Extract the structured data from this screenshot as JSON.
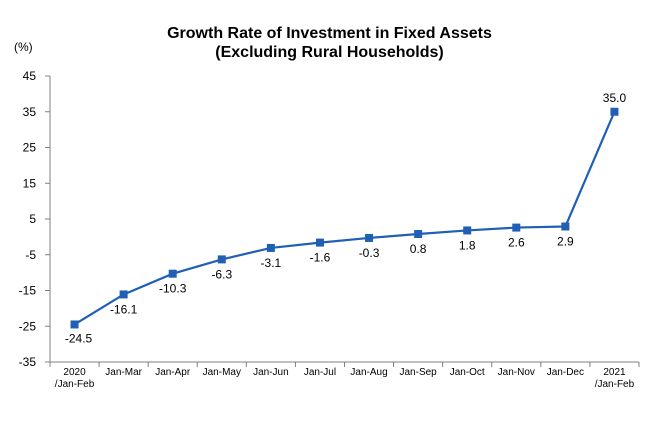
{
  "chart_data": {
    "type": "line",
    "title": "Growth Rate of Investment in Fixed Assets",
    "subtitle": "(Excluding Rural Households)",
    "ylabel": "(%)",
    "xlabel": "",
    "categories": [
      [
        "2020",
        "/Jan-Feb"
      ],
      [
        "Jan-Mar"
      ],
      [
        "Jan-Apr"
      ],
      [
        "Jan-May"
      ],
      [
        "Jan-Jun"
      ],
      [
        "Jan-Jul"
      ],
      [
        "Jan-Aug"
      ],
      [
        "Jan-Sep"
      ],
      [
        "Jan-Oct"
      ],
      [
        "Jan-Nov"
      ],
      [
        "Jan-Dec"
      ],
      [
        "2021",
        "/Jan-Feb"
      ]
    ],
    "values": [
      -24.5,
      -16.1,
      -10.3,
      -6.3,
      -3.1,
      -1.6,
      -0.3,
      0.8,
      1.8,
      2.6,
      2.9,
      35.0
    ],
    "data_labels": [
      "-24.5",
      "-16.1",
      "-10.3",
      "-6.3",
      "-3.1",
      "-1.6",
      "-0.3",
      "0.8",
      "1.8",
      "2.6",
      "2.9",
      "35.0"
    ],
    "ylim": [
      -35,
      45
    ],
    "yticks": [
      "45",
      "35",
      "25",
      "15",
      "5",
      "-5",
      "-15",
      "-25",
      "-35"
    ],
    "ytick_values": [
      45,
      35,
      25,
      15,
      5,
      -5,
      -15,
      -25,
      -35
    ],
    "grid": false,
    "legend": "none",
    "line_color": "#1f5fb4",
    "marker_color": "#1f5fb4",
    "axis_color": "#808080"
  }
}
